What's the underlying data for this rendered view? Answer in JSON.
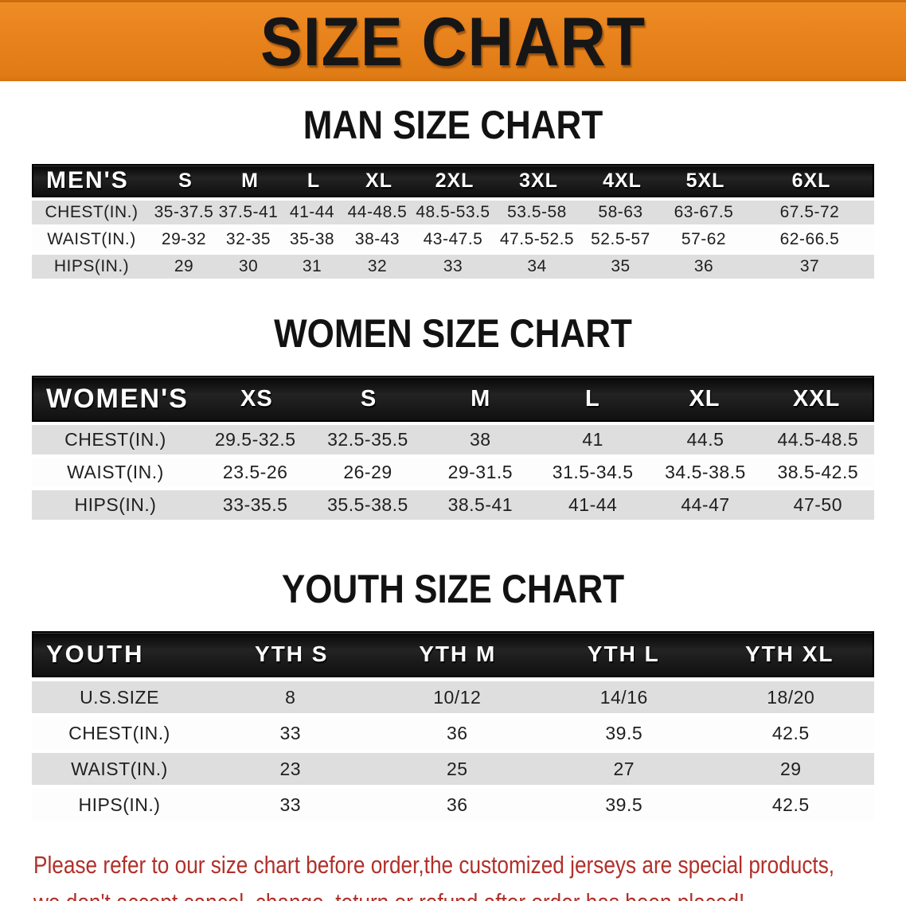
{
  "banner": {
    "title": "SIZE CHART",
    "bg_color": "#E8821C",
    "title_color": "#161616"
  },
  "sections": {
    "men": {
      "heading": "MAN SIZE CHART",
      "corner": "MEN'S",
      "columns": [
        "S",
        "M",
        "L",
        "XL",
        "2XL",
        "3XL",
        "4XL",
        "5XL",
        "6XL"
      ],
      "rows": [
        {
          "label": "CHEST(IN.)",
          "values": [
            "35-37.5",
            "37.5-41",
            "41-44",
            "44-48.5",
            "48.5-53.5",
            "53.5-58",
            "58-63",
            "63-67.5",
            "67.5-72"
          ]
        },
        {
          "label": "WAIST(IN.)",
          "values": [
            "29-32",
            "32-35",
            "35-38",
            "38-43",
            "43-47.5",
            "47.5-52.5",
            "52.5-57",
            "57-62",
            "62-66.5"
          ]
        },
        {
          "label": "HIPS(IN.)",
          "values": [
            "29",
            "30",
            "31",
            "32",
            "33",
            "34",
            "35",
            "36",
            "37"
          ]
        }
      ]
    },
    "women": {
      "heading": "WOMEN SIZE CHART",
      "corner": "WOMEN'S",
      "columns": [
        "XS",
        "S",
        "M",
        "L",
        "XL",
        "XXL"
      ],
      "rows": [
        {
          "label": "CHEST(IN.)",
          "values": [
            "29.5-32.5",
            "32.5-35.5",
            "38",
            "41",
            "44.5",
            "44.5-48.5"
          ]
        },
        {
          "label": "WAIST(IN.)",
          "values": [
            "23.5-26",
            "26-29",
            "29-31.5",
            "31.5-34.5",
            "34.5-38.5",
            "38.5-42.5"
          ]
        },
        {
          "label": "HIPS(IN.)",
          "values": [
            "33-35.5",
            "35.5-38.5",
            "38.5-41",
            "41-44",
            "44-47",
            "47-50"
          ]
        }
      ]
    },
    "youth": {
      "heading": "YOUTH SIZE CHART",
      "corner": "YOUTH",
      "columns": [
        "YTH S",
        "YTH M",
        "YTH L",
        "YTH XL"
      ],
      "rows": [
        {
          "label": "U.S.SIZE",
          "values": [
            "8",
            "10/12",
            "14/16",
            "18/20"
          ]
        },
        {
          "label": "CHEST(IN.)",
          "values": [
            "33",
            "36",
            "39.5",
            "42.5"
          ]
        },
        {
          "label": "WAIST(IN.)",
          "values": [
            "23",
            "25",
            "27",
            "29"
          ]
        },
        {
          "label": "HIPS(IN.)",
          "values": [
            "33",
            "36",
            "39.5",
            "42.5"
          ]
        }
      ]
    }
  },
  "footer": {
    "line1": "Please refer to our size chart before order,the customized jerseys are special products,",
    "line2": "we don't accept cancel, change, teturn or refund after order has been placed!",
    "text_color": "#B1302A"
  },
  "colors": {
    "stripe_gray": "#DEDEDE",
    "stripe_white": "#FDFDFD",
    "header_black": "#141414"
  }
}
